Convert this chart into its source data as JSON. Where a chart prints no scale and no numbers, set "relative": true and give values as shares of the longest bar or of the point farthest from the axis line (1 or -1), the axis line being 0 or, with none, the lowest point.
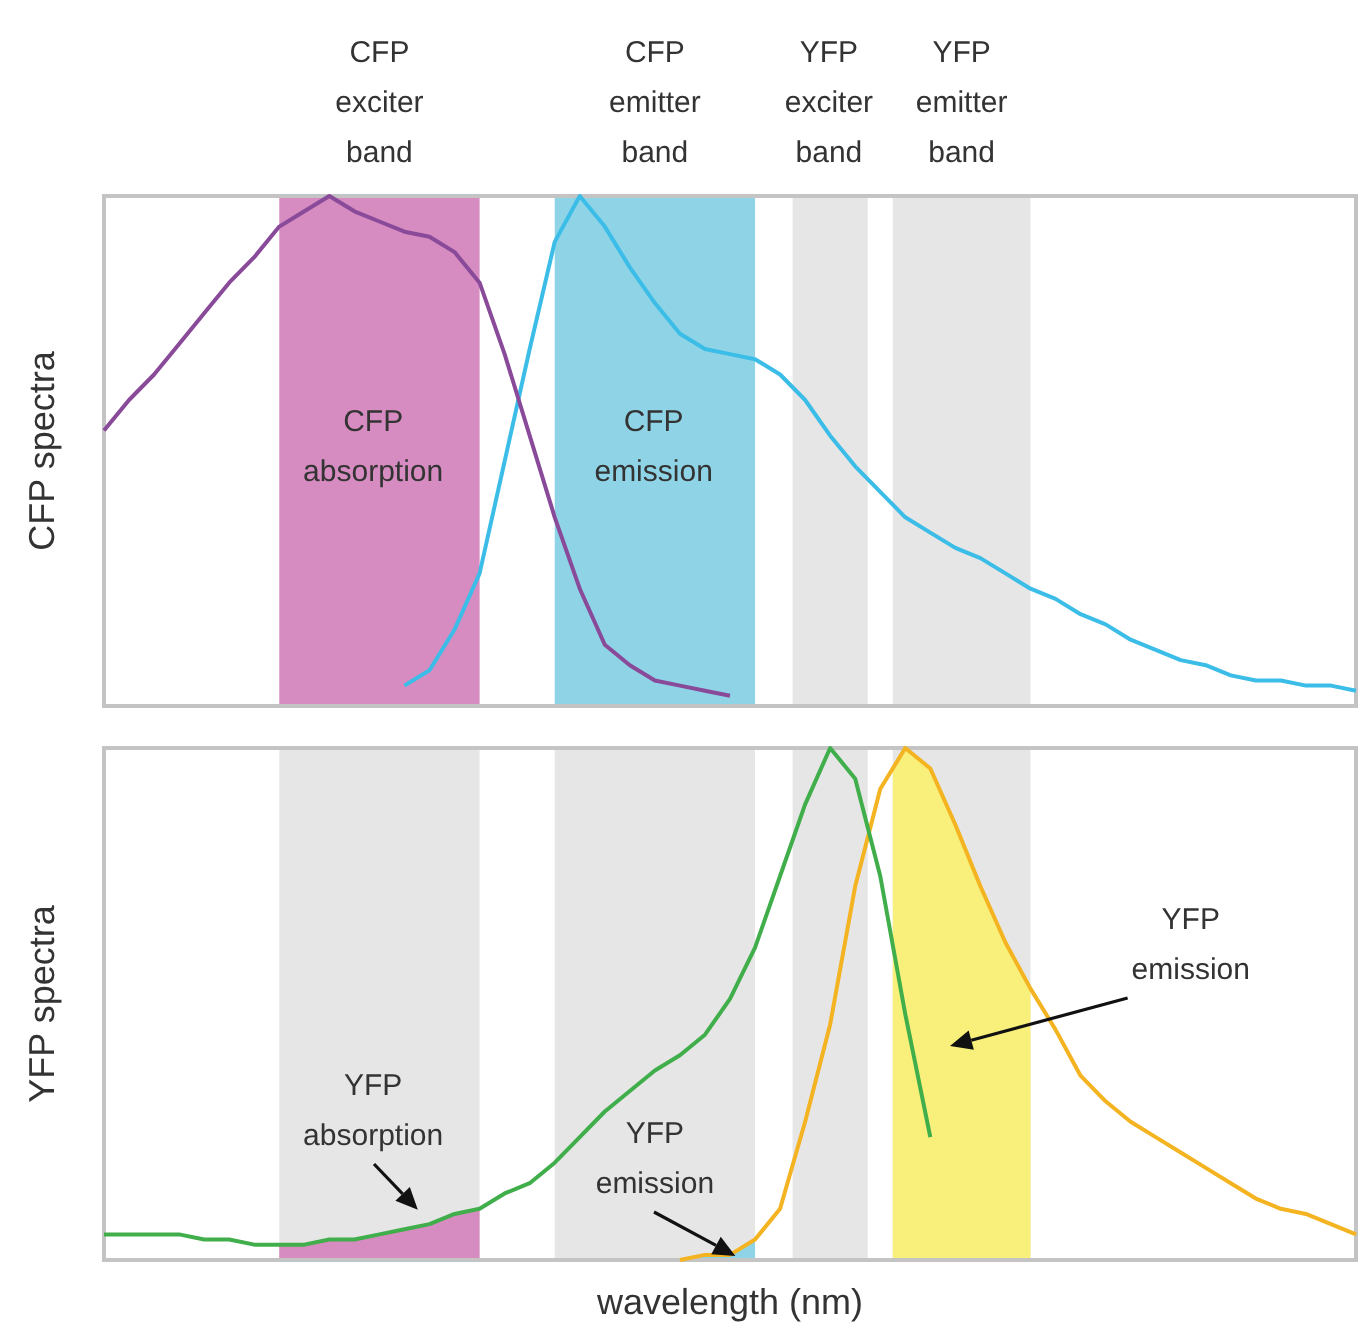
{
  "chart_data": [
    {
      "type": "line",
      "ylabel": "CFP spectra",
      "relative": true,
      "categories": [
        null,
        null,
        null,
        null,
        null,
        null,
        null,
        null,
        null,
        null,
        null,
        null,
        null,
        null,
        null,
        null,
        null,
        null,
        null,
        null,
        null,
        null,
        null,
        null,
        null,
        null,
        null,
        null,
        null,
        null,
        null,
        null,
        null,
        null,
        null,
        null,
        null,
        null,
        null,
        null,
        null,
        null,
        null,
        null,
        null,
        null,
        null,
        null,
        null,
        null,
        null
      ],
      "series": [
        {
          "color": "#8a4a9a",
          "values": [
            0.54,
            0.6,
            0.65,
            0.71,
            0.77,
            0.83,
            0.88,
            0.94,
            0.97,
            1.0,
            0.97,
            0.95,
            0.93,
            0.92,
            0.89,
            0.83,
            0.69,
            0.53,
            0.37,
            0.23,
            0.12,
            0.08,
            0.05,
            0.04,
            0.03,
            0.02,
            null,
            null,
            null,
            null,
            null,
            null,
            null,
            null,
            null,
            null,
            null,
            null,
            null,
            null,
            null,
            null,
            null,
            null,
            null,
            null,
            null,
            null,
            null,
            null,
            null
          ]
        },
        {
          "color": "#3bbde8",
          "values": [
            null,
            null,
            null,
            null,
            null,
            null,
            null,
            null,
            null,
            null,
            null,
            null,
            0.04,
            0.07,
            0.15,
            0.26,
            0.48,
            0.7,
            0.91,
            1.0,
            0.94,
            0.86,
            0.79,
            0.73,
            0.7,
            0.69,
            0.68,
            0.65,
            0.6,
            0.53,
            0.47,
            0.42,
            0.37,
            0.34,
            0.31,
            0.29,
            0.26,
            0.23,
            0.21,
            0.18,
            0.16,
            0.13,
            0.11,
            0.09,
            0.08,
            0.06,
            0.05,
            0.05,
            0.04,
            0.04,
            0.03
          ]
        }
      ],
      "annotations": [
        "CFP exciter band",
        "CFP emitter band",
        "YFP exciter band",
        "YFP emitter band",
        "CFP absorption",
        "CFP emission"
      ]
    },
    {
      "type": "line",
      "ylabel": "YFP spectra",
      "xlabel": "wavelength (nm)",
      "relative": true,
      "categories": [
        null,
        null,
        null,
        null,
        null,
        null,
        null,
        null,
        null,
        null,
        null,
        null,
        null,
        null,
        null,
        null,
        null,
        null,
        null,
        null,
        null,
        null,
        null,
        null,
        null,
        null,
        null,
        null,
        null,
        null,
        null,
        null,
        null,
        null,
        null,
        null,
        null,
        null,
        null,
        null,
        null,
        null,
        null,
        null,
        null,
        null,
        null,
        null,
        null,
        null,
        null
      ],
      "series": [
        {
          "color": "#40ae4a",
          "values": [
            0.05,
            0.05,
            0.05,
            0.05,
            0.04,
            0.04,
            0.03,
            0.03,
            0.03,
            0.04,
            0.04,
            0.05,
            0.06,
            0.07,
            0.09,
            0.1,
            0.13,
            0.15,
            0.19,
            0.24,
            0.29,
            0.33,
            0.37,
            0.4,
            0.44,
            0.51,
            0.61,
            0.75,
            0.89,
            1.0,
            0.94,
            0.75,
            0.48,
            0.24,
            null,
            null,
            null,
            null,
            null,
            null,
            null,
            null,
            null,
            null,
            null,
            null,
            null,
            null,
            null,
            null,
            null
          ]
        },
        {
          "color": "#f4b320",
          "values": [
            null,
            null,
            null,
            null,
            null,
            null,
            null,
            null,
            null,
            null,
            null,
            null,
            null,
            null,
            null,
            null,
            null,
            null,
            null,
            null,
            null,
            null,
            null,
            0,
            0.01,
            0.01,
            0.04,
            0.1,
            0.27,
            0.46,
            0.73,
            0.92,
            1.0,
            0.96,
            0.85,
            0.73,
            0.62,
            0.53,
            0.45,
            0.36,
            0.31,
            0.27,
            0.24,
            0.21,
            0.18,
            0.15,
            0.12,
            0.1,
            0.09,
            0.07,
            0.05
          ]
        }
      ],
      "annotations": [
        "YFP absorption",
        "YFP emission",
        "YFP emission"
      ]
    }
  ]
}
